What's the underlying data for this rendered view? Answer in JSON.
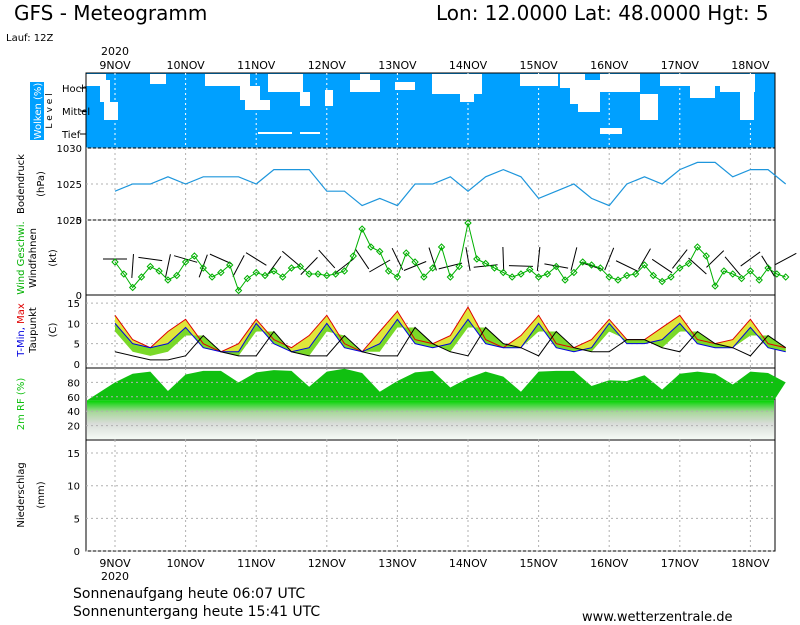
{
  "header": {
    "title": "GFS - Meteogramm",
    "coords": "Lon: 12.0000 Lat: 48.0000 Hgt: 5",
    "run": "Lauf: 12Z"
  },
  "footer": {
    "sunrise": "Sonnenaufgang heute 06:07 UTC",
    "sunset": "Sonnenuntergang heute 15:41 UTC",
    "site": "www.wetterzentrale.de"
  },
  "time_axis": {
    "year": "2020",
    "days": [
      "9NOV",
      "10NOV",
      "11NOV",
      "12NOV",
      "13NOV",
      "14NOV",
      "15NOV",
      "16NOV",
      "17NOV",
      "18NOV"
    ]
  },
  "colors": {
    "cloud_bg": "#00a0ff",
    "pressure": "#1e96dc",
    "wind": "#00b000",
    "tmax": "#e00000",
    "tmin": "#0000e0",
    "humidity": "#10c010"
  },
  "chart_data": [
    {
      "type": "heatmap",
      "panel": "clouds",
      "ylabel": "Wolken (%)",
      "side_label": "Level",
      "levels": [
        "Hoch",
        "Mittel",
        "Tief"
      ]
    },
    {
      "type": "line",
      "panel": "pressure",
      "ylabel": "Bodendruck",
      "unit": "(hPa)",
      "ylim": [
        1020,
        1030
      ],
      "yticks": [
        "1030",
        "1025",
        "1020"
      ],
      "x": [
        0,
        0.25,
        0.5,
        0.75,
        1,
        1.25,
        1.5,
        1.75,
        2,
        2.25,
        2.5,
        2.75,
        3,
        3.25,
        3.5,
        3.75,
        4,
        4.25,
        4.5,
        4.75,
        5,
        5.25,
        5.5,
        5.75,
        6,
        6.25,
        6.5,
        6.75,
        7,
        7.25,
        7.5,
        7.75,
        8,
        8.25,
        8.5,
        8.75,
        9,
        9.25,
        9.5
      ],
      "values": [
        1024,
        1025,
        1025,
        1026,
        1025,
        1026,
        1026,
        1026,
        1025,
        1027,
        1027,
        1027,
        1024,
        1024,
        1022,
        1023,
        1022,
        1025,
        1025,
        1026,
        1024,
        1026,
        1027,
        1026,
        1023,
        1024,
        1025,
        1023,
        1022,
        1025,
        1026,
        1025,
        1027,
        1028,
        1028,
        1026,
        1027,
        1027,
        1025
      ],
      "series": [
        {
          "name": "Bodendruck"
        }
      ]
    },
    {
      "type": "line",
      "panel": "wind",
      "ylabel": "Wind Geschwi.",
      "ylabel2": "Windfahnen",
      "unit": "(kt)",
      "ylim": [
        0,
        5
      ],
      "yticks": [
        "5",
        "0"
      ],
      "x": [
        0,
        0.125,
        0.25,
        0.375,
        0.5,
        0.625,
        0.75,
        0.875,
        1,
        1.125,
        1.25,
        1.375,
        1.5,
        1.625,
        1.75,
        1.875,
        2,
        2.125,
        2.25,
        2.375,
        2.5,
        2.625,
        2.75,
        2.875,
        3,
        3.125,
        3.25,
        3.375,
        3.5,
        3.625,
        3.75,
        3.875,
        4,
        4.125,
        4.25,
        4.375,
        4.5,
        4.625,
        4.75,
        4.875,
        5,
        5.125,
        5.25,
        5.375,
        5.5,
        5.625,
        5.75,
        5.875,
        6,
        6.125,
        6.25,
        6.375,
        6.5,
        6.625,
        6.75,
        6.875,
        7,
        7.125,
        7.25,
        7.375,
        7.5,
        7.625,
        7.75,
        7.875,
        8,
        8.125,
        8.25,
        8.375,
        8.5,
        8.625,
        8.75,
        8.875,
        9,
        9.125,
        9.25,
        9.375,
        9.5
      ],
      "values": [
        2.2,
        1.4,
        0.5,
        1.2,
        1.9,
        1.6,
        1.0,
        1.3,
        2.2,
        2.6,
        1.8,
        1.2,
        1.5,
        2.0,
        0.3,
        1.1,
        1.5,
        1.3,
        1.6,
        1.2,
        1.8,
        1.9,
        1.4,
        1.4,
        1.3,
        1.4,
        1.6,
        2.6,
        4.4,
        3.2,
        2.9,
        1.6,
        1.2,
        2.8,
        2.2,
        1.2,
        1.8,
        3.2,
        1.2,
        1.9,
        4.8,
        2.4,
        2.1,
        1.8,
        1.5,
        1.2,
        1.4,
        1.7,
        1.2,
        1.4,
        1.9,
        1.0,
        1.5,
        2.2,
        2.0,
        1.8,
        1.2,
        1.0,
        1.3,
        1.4,
        2.0,
        1.3,
        0.9,
        1.2,
        1.8,
        2.1,
        3.2,
        2.6,
        0.6,
        1.6,
        1.4,
        1.1,
        1.6,
        1.0,
        1.8,
        1.4,
        1.2
      ],
      "series": [
        {
          "name": "Wind Geschwi."
        }
      ]
    },
    {
      "type": "area",
      "panel": "temperature",
      "ylabel": "T-Min, Max",
      "ylabel2": "Taupunkt",
      "unit": "(C)",
      "ylim": [
        -1,
        17
      ],
      "yticks": [
        "15",
        "10",
        "5",
        "0"
      ],
      "x": [
        0,
        0.25,
        0.5,
        0.75,
        1,
        1.25,
        1.5,
        1.75,
        2,
        2.25,
        2.5,
        2.75,
        3,
        3.25,
        3.5,
        3.75,
        4,
        4.25,
        4.5,
        4.75,
        5,
        5.25,
        5.5,
        5.75,
        6,
        6.25,
        6.5,
        6.75,
        7,
        7.25,
        7.5,
        7.75,
        8,
        8.25,
        8.5,
        8.75,
        9,
        9.25,
        9.5
      ],
      "series": [
        {
          "name": "T-Max",
          "values": [
            12,
            6,
            4,
            8,
            11,
            5,
            3,
            5,
            11,
            6,
            4,
            7,
            12,
            5,
            3,
            8,
            13,
            6,
            5,
            7,
            14,
            6,
            4,
            7,
            12,
            5,
            4,
            6,
            11,
            6,
            6,
            9,
            12,
            6,
            5,
            6,
            11,
            5,
            4
          ]
        },
        {
          "name": "T-Min",
          "values": [
            10,
            5,
            4,
            5,
            9,
            4,
            3,
            3,
            10,
            5,
            3,
            4,
            10,
            4,
            3,
            5,
            11,
            5,
            4,
            5,
            11,
            5,
            4,
            4,
            10,
            4,
            3,
            4,
            10,
            5,
            5,
            6,
            10,
            5,
            4,
            4,
            9,
            4,
            3
          ]
        },
        {
          "name": "Taupunkt",
          "values": [
            3,
            2,
            1,
            1,
            2,
            7,
            3,
            2,
            2,
            8,
            3,
            2,
            2,
            7,
            3,
            2,
            2,
            9,
            5,
            3,
            2,
            9,
            5,
            4,
            2,
            8,
            4,
            3,
            3,
            6,
            6,
            4,
            3,
            8,
            5,
            4,
            2,
            7,
            4
          ]
        }
      ]
    },
    {
      "type": "area",
      "panel": "humidity",
      "ylabel": "2m RF (%)",
      "ylim": [
        0,
        100
      ],
      "yticks": [
        "80",
        "60",
        "40",
        "20"
      ],
      "x": [
        0,
        0.25,
        0.5,
        0.75,
        1,
        1.25,
        1.5,
        1.75,
        2,
        2.25,
        2.5,
        2.75,
        3,
        3.25,
        3.5,
        3.75,
        4,
        4.25,
        4.5,
        4.75,
        5,
        5.25,
        5.5,
        5.75,
        6,
        6.25,
        6.5,
        6.75,
        7,
        7.25,
        7.5,
        7.75,
        8,
        8.25,
        8.5,
        8.75,
        9,
        9.25,
        9.5
      ],
      "values": [
        80,
        92,
        95,
        68,
        91,
        96,
        96,
        80,
        94,
        97,
        96,
        74,
        95,
        99,
        93,
        67,
        82,
        94,
        96,
        73,
        86,
        95,
        88,
        67,
        95,
        96,
        96,
        75,
        83,
        82,
        90,
        70,
        92,
        95,
        92,
        77,
        95,
        93,
        80
      ],
      "series": [
        {
          "name": "2m RF"
        }
      ]
    },
    {
      "type": "bar",
      "panel": "precipitation",
      "ylabel": "Niederschlag",
      "unit": "(mm)",
      "ylim": [
        0,
        17
      ],
      "yticks": [
        "15",
        "10",
        "5",
        "0"
      ],
      "values": []
    }
  ]
}
